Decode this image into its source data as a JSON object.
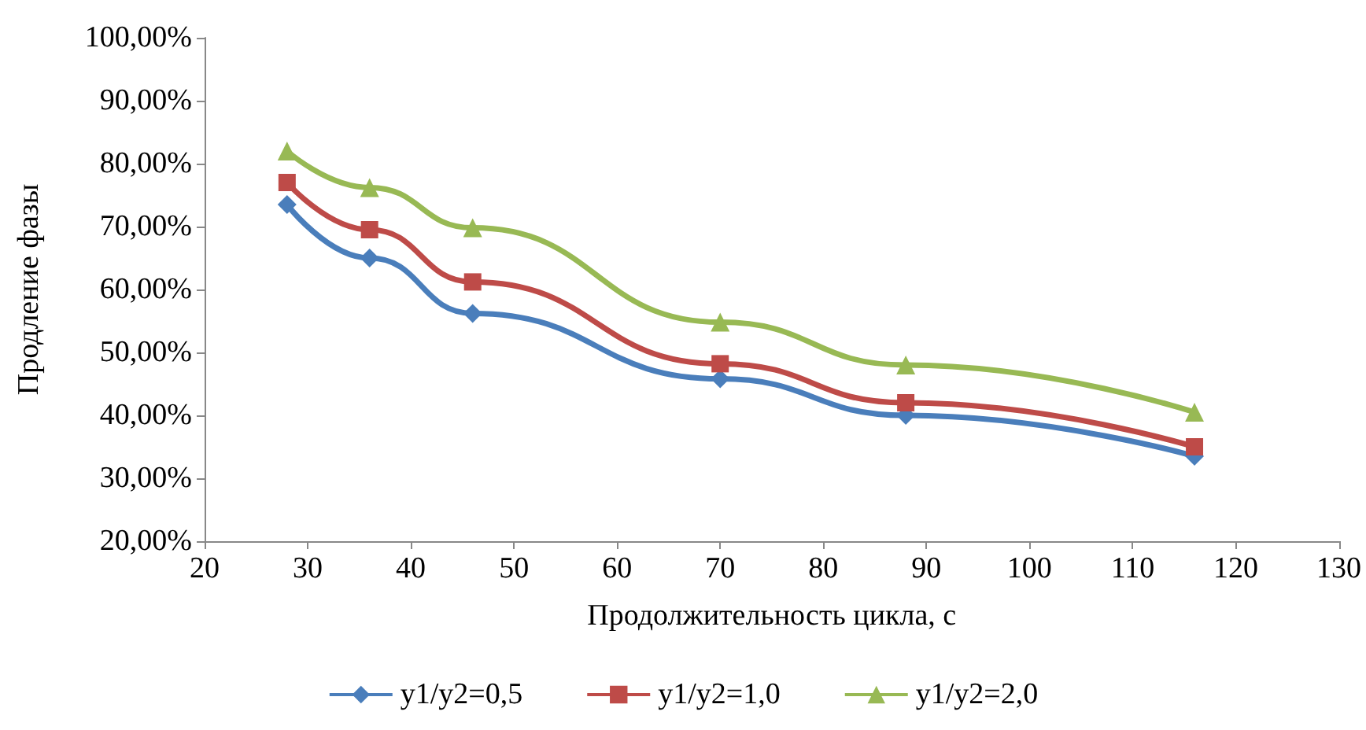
{
  "chart_data": {
    "type": "line",
    "xlabel": "Продолжительность цикла, с",
    "ylabel": "Продление фазы",
    "x": [
      28,
      36,
      46,
      70,
      88,
      116
    ],
    "series": [
      {
        "name": "y1/y2=0,5",
        "color": "#4a7ebb",
        "marker": "diamond",
        "values": [
          73.5,
          65,
          56.2,
          45.8,
          40,
          33.5
        ]
      },
      {
        "name": "y1/y2=1,0",
        "color": "#be4b48",
        "marker": "square",
        "values": [
          77,
          69.5,
          61.2,
          48.2,
          42,
          35
        ]
      },
      {
        "name": "y1/y2=2,0",
        "color": "#98b954",
        "marker": "triangle",
        "values": [
          82,
          76.2,
          69.8,
          54.8,
          48,
          40.5
        ]
      }
    ],
    "xlim": [
      20,
      130
    ],
    "xticks": [
      20,
      30,
      40,
      50,
      60,
      70,
      80,
      90,
      100,
      110,
      120,
      130
    ],
    "ylim": [
      20,
      100
    ],
    "yticks": [
      {
        "value": 20,
        "label": "20,00%"
      },
      {
        "value": 30,
        "label": "30,00%"
      },
      {
        "value": 40,
        "label": "40,00%"
      },
      {
        "value": 50,
        "label": "50,00%"
      },
      {
        "value": 60,
        "label": "60,00%"
      },
      {
        "value": 70,
        "label": "70,00%"
      },
      {
        "value": 80,
        "label": "80,00%"
      },
      {
        "value": 90,
        "label": "90,00%"
      },
      {
        "value": 100,
        "label": "100,00%"
      }
    ],
    "legend": "bottom",
    "line_style": "solid"
  }
}
